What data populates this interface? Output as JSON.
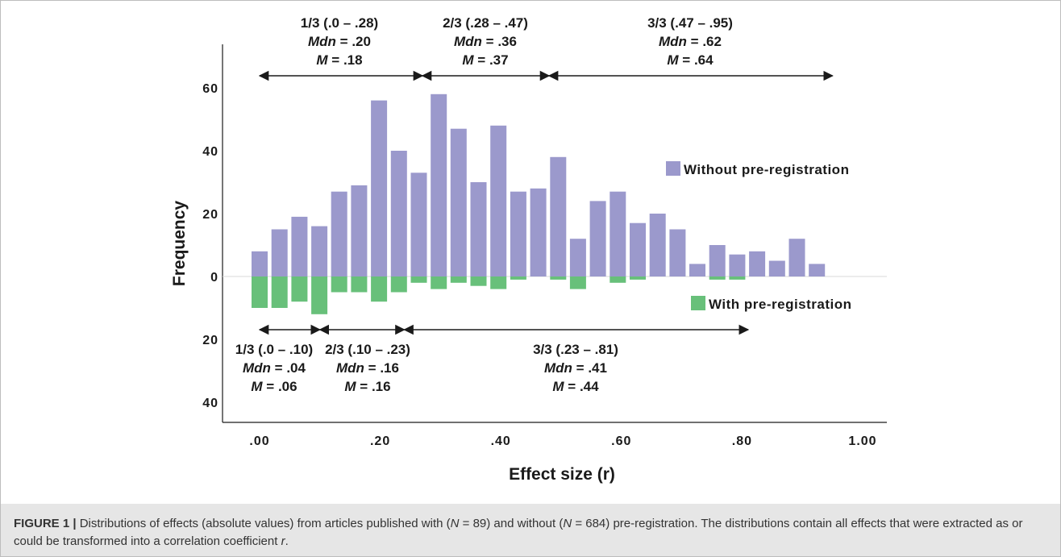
{
  "chart_data": {
    "type": "bar",
    "xlabel": "Effect size (r)",
    "ylabel": "Frequency",
    "x_ticks": [
      ".00",
      ".20",
      ".40",
      ".60",
      ".80",
      "1.00"
    ],
    "y_ticks_up": [
      "60",
      "40",
      "20",
      "0"
    ],
    "y_ticks_down": [
      "20",
      "40"
    ],
    "x_range": [
      0,
      1
    ],
    "y_range": [
      -40,
      60
    ],
    "bin_width": 0.033,
    "series": [
      {
        "name": "Without pre-registration",
        "color": "#9b99cc",
        "direction": "up",
        "x": [
          0.0,
          0.033,
          0.066,
          0.099,
          0.132,
          0.165,
          0.198,
          0.231,
          0.264,
          0.297,
          0.33,
          0.363,
          0.396,
          0.429,
          0.462,
          0.495,
          0.528,
          0.561,
          0.594,
          0.627,
          0.66,
          0.693,
          0.726,
          0.759,
          0.792,
          0.825,
          0.858,
          0.891,
          0.924
        ],
        "values": [
          8,
          15,
          19,
          16,
          27,
          29,
          56,
          40,
          33,
          58,
          47,
          30,
          48,
          27,
          28,
          38,
          12,
          24,
          27,
          17,
          20,
          15,
          4,
          10,
          7,
          8,
          5,
          12,
          4
        ]
      },
      {
        "name": "With pre-registration",
        "color": "#68c07a",
        "direction": "down",
        "x": [
          0.0,
          0.033,
          0.066,
          0.099,
          0.132,
          0.165,
          0.198,
          0.231,
          0.264,
          0.297,
          0.33,
          0.363,
          0.396,
          0.429,
          0.462,
          0.495,
          0.528,
          0.561,
          0.594,
          0.627,
          0.66,
          0.693,
          0.726,
          0.759,
          0.792,
          0.825,
          0.858,
          0.891,
          0.924
        ],
        "values": [
          10,
          10,
          8,
          12,
          5,
          5,
          8,
          5,
          2,
          4,
          2,
          3,
          4,
          1,
          0,
          1,
          4,
          0,
          2,
          1,
          0,
          0,
          0,
          1,
          1,
          0,
          0,
          0,
          0
        ]
      }
    ],
    "annotations_top": [
      {
        "from": 0.0,
        "to": 0.27,
        "line1": "1/3 (.0 – .28)",
        "mdn": " = .20",
        "m": " = .18"
      },
      {
        "from": 0.27,
        "to": 0.48,
        "line1": "2/3 (.28 – .47)",
        "mdn": " = .36",
        "m": " = .37"
      },
      {
        "from": 0.48,
        "to": 0.95,
        "line1": "3/3 (.47 – .95)",
        "mdn": " = .62",
        "m": " = .64"
      }
    ],
    "annotations_bottom": [
      {
        "from": 0.0,
        "to": 0.1,
        "line1": "1/3 (.0 – .10)",
        "mdn": " = .04",
        "m": " = .06"
      },
      {
        "from": 0.1,
        "to": 0.24,
        "line1": "2/3 (.10 – .23)",
        "mdn": " = .16",
        "m": " = .16"
      },
      {
        "from": 0.24,
        "to": 0.81,
        "line1": "3/3 (.23 – .81)",
        "mdn": " = .41",
        "m": " = .44"
      }
    ],
    "mdn_label": "Mdn",
    "m_label": "M"
  },
  "caption": {
    "label": "FIGURE 1 |",
    "part1": " Distributions of effects (absolute values) from articles published with (",
    "n_italic": "N",
    "part2": " = 89) and without (",
    "part3": " = 684) pre-registration. The distributions contain all effects that were extracted as or could be transformed into a correlation coefficient ",
    "r_italic": "r",
    "part4": "."
  }
}
